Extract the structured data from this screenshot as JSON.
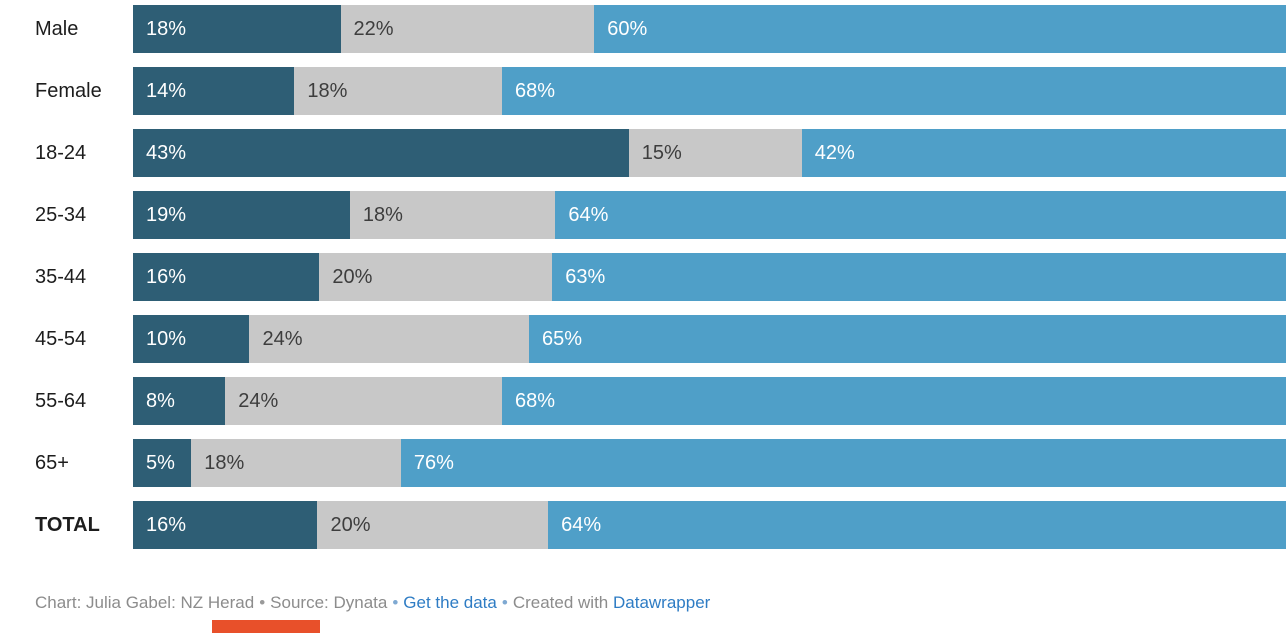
{
  "chart_data": {
    "type": "bar",
    "orientation": "horizontal",
    "stacked": true,
    "normalized": true,
    "legend_position": "none",
    "grid": false,
    "value_suffix": "%",
    "categories": [
      "Male",
      "Female",
      "18-24",
      "25-34",
      "35-44",
      "45-54",
      "55-64",
      "65+",
      "TOTAL"
    ],
    "bold_categories": [
      "TOTAL"
    ],
    "series": [
      {
        "name": "dark-blue-segment",
        "color": "#2e5e75",
        "label_color": "#ffffff",
        "values": [
          18,
          14,
          43,
          19,
          16,
          10,
          8,
          5,
          16
        ]
      },
      {
        "name": "gray-segment",
        "color": "#c8c8c8",
        "label_color": "#3d3d3d",
        "values": [
          22,
          18,
          15,
          18,
          20,
          24,
          24,
          18,
          20
        ]
      },
      {
        "name": "light-blue-segment",
        "color": "#4f9fc8",
        "label_color": "#ffffff",
        "values": [
          60,
          68,
          42,
          64,
          63,
          65,
          68,
          76,
          64
        ]
      }
    ]
  },
  "footer": {
    "credit": "Chart: Julia Gabel: NZ Herad",
    "separator": "•",
    "source": "Source: Dynata",
    "get_data": "Get the data",
    "created_with": "Created with",
    "datawrapper": "Datawrapper"
  },
  "annotation": {
    "name": "red-highlight-under-NZ-Herad",
    "highlighted_text": "NZ Herad",
    "color": "#e8502a"
  },
  "colors": {
    "category_label": "#1d1d1d",
    "footer_text": "#8c8c8c",
    "link": "#2e7cc4"
  }
}
